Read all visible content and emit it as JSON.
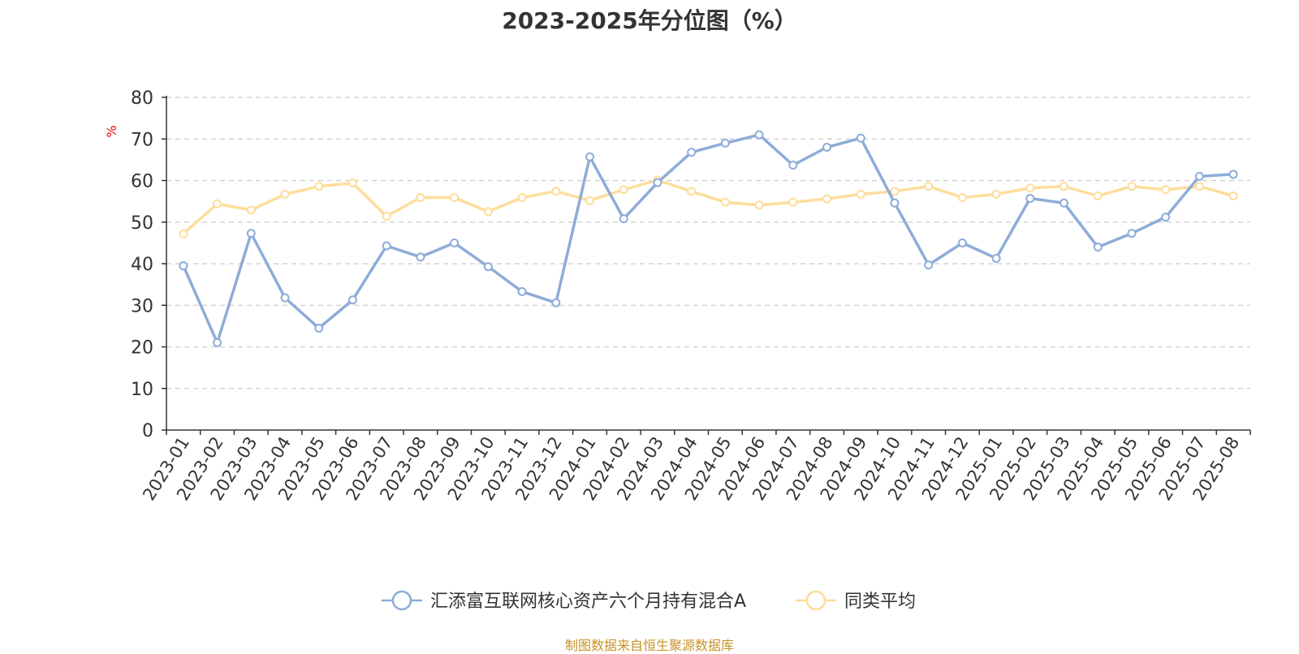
{
  "title": "2023-2025年分位图（%）",
  "footer": "制图数据来自恒生聚源数据库",
  "chart_data": {
    "type": "line",
    "title": "2023-2025年分位图（%）",
    "ylabel": "%",
    "ylim": [
      0,
      80
    ],
    "yticks": [
      0,
      10,
      20,
      30,
      40,
      50,
      60,
      70,
      80
    ],
    "grid": true,
    "legend_position": "bottom-center",
    "categories": [
      "2023-01",
      "2023-02",
      "2023-03",
      "2023-04",
      "2023-05",
      "2023-06",
      "2023-07",
      "2023-08",
      "2023-09",
      "2023-10",
      "2023-11",
      "2023-12",
      "2024-01",
      "2024-02",
      "2024-03",
      "2024-04",
      "2024-05",
      "2024-06",
      "2024-07",
      "2024-08",
      "2024-09",
      "2024-10",
      "2024-11",
      "2024-12",
      "2025-01",
      "2025-02",
      "2025-03",
      "2025-04",
      "2025-05",
      "2025-06",
      "2025-07",
      "2025-08"
    ],
    "series": [
      {
        "name": "汇添富互联网核心资产六个月持有混合A",
        "color": "#8eacd9",
        "values": [
          39.5,
          21.0,
          47.3,
          31.8,
          24.5,
          31.3,
          44.3,
          41.6,
          45.0,
          39.3,
          33.3,
          30.6,
          65.7,
          50.8,
          59.5,
          66.8,
          69.0,
          71.0,
          63.7,
          68.0,
          70.2,
          54.6,
          39.7,
          45.0,
          41.3,
          55.7,
          54.6,
          44.0,
          47.3,
          51.2,
          61.0,
          61.5
        ]
      },
      {
        "name": "同类平均",
        "color": "#fddd9b",
        "values": [
          47.2,
          54.4,
          52.9,
          56.7,
          58.6,
          59.4,
          51.4,
          55.9,
          55.9,
          52.5,
          55.9,
          57.4,
          55.2,
          57.8,
          60.1,
          57.4,
          54.8,
          54.1,
          54.8,
          55.6,
          56.7,
          57.4,
          58.6,
          55.9,
          56.7,
          58.2,
          58.6,
          56.3,
          58.6,
          57.8,
          58.6,
          56.3
        ]
      }
    ]
  }
}
